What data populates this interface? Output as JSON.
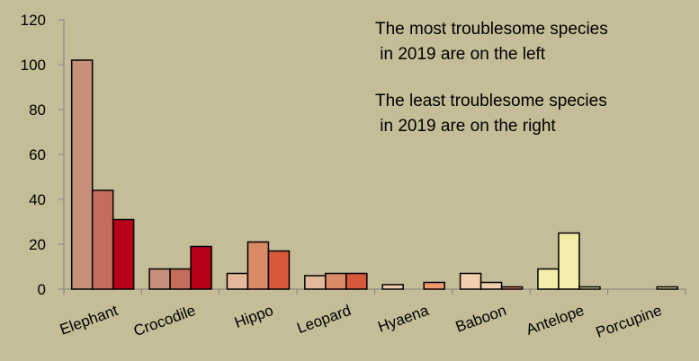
{
  "chart_data": {
    "type": "bar",
    "title": "",
    "xlabel": "",
    "ylabel": "",
    "ylim": [
      0,
      120
    ],
    "yticks": [
      0,
      20,
      40,
      60,
      80,
      100,
      120
    ],
    "grid": false,
    "legend": "none",
    "categories": [
      "Elephant",
      "Crocodile",
      "Hippo",
      "Leopard",
      "Hyaena",
      "Baboon",
      "Antelope",
      "Porcupine"
    ],
    "series": [
      {
        "values": [
          102,
          9,
          7,
          6,
          2,
          7,
          9,
          0
        ],
        "colors": [
          "#c8907a",
          "#c8907a",
          "#e5b99b",
          "#e5b99b",
          "#f0cfae",
          "#f0cfae",
          "#f3eda9",
          "#f3eda9"
        ]
      },
      {
        "values": [
          44,
          9,
          21,
          7,
          0,
          3,
          25,
          0
        ],
        "colors": [
          "#c36e5c",
          "#c36e5c",
          "#d98b68",
          "#d98b68",
          "#f0cfae",
          "#f0cfae",
          "#f3eda9",
          "#f3eda9"
        ]
      },
      {
        "values": [
          31,
          19,
          17,
          7,
          3,
          1,
          1,
          1
        ],
        "colors": [
          "#b80016",
          "#b80016",
          "#d8583a",
          "#d8583a",
          "#ee9870",
          "#ee9870",
          "#f3eda9",
          "#f3eda9"
        ]
      }
    ],
    "annotations": [
      {
        "lines": [
          "The most troublesome species",
          " in 2019 are on the left"
        ]
      },
      {
        "lines": [
          "The least troublesome species",
          " in 2019 are on the right"
        ]
      }
    ]
  }
}
